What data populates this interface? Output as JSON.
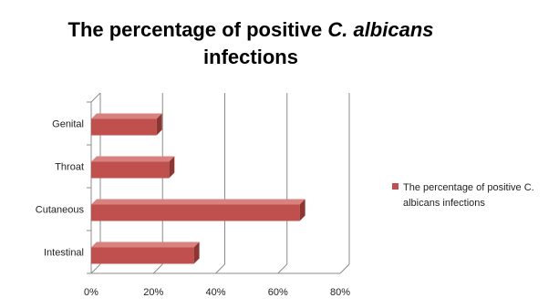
{
  "chart_data": {
    "type": "bar",
    "orientation": "horizontal",
    "title": "The percentage of positive C. albicans infections",
    "title_main": "The percentage of positive ",
    "title_italic": "C. albicans",
    "title_tail": "infections",
    "categories": [
      "Intestinal",
      "Cutaneous",
      "Throat",
      "Genital"
    ],
    "series": [
      {
        "name": "The percentage of positive C. albicans infections",
        "legend_line1": "The percentage of positive C.",
        "legend_line2": "albicans infections",
        "values": [
          33,
          67,
          25,
          21
        ],
        "color": "#c0504d"
      }
    ],
    "xlim": [
      0,
      80
    ],
    "xticks": [
      "0%",
      "20%",
      "40%",
      "60%",
      "80%"
    ],
    "grid": true,
    "legend": "right"
  }
}
